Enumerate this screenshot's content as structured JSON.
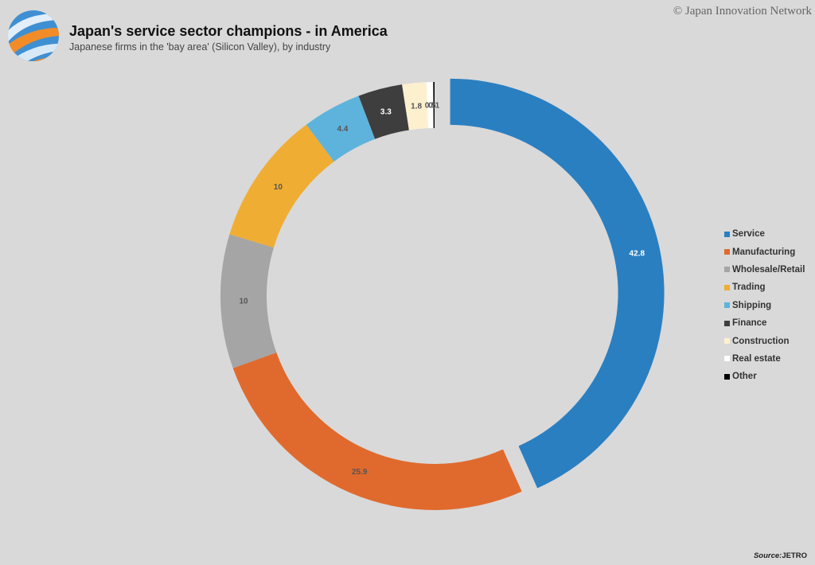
{
  "header": {
    "title": "Japan's service sector champions - in America",
    "subtitle": "Japanese firms in the 'bay area' (Silicon Valley), by industry",
    "copyright": "© Japan Innovation Network"
  },
  "footer": {
    "source_label": "Source:",
    "source_value": "JETRO"
  },
  "chart_data": {
    "type": "pie",
    "variant": "donut",
    "title": "Japan's service sector champions - in America",
    "subtitle": "Japanese firms in the 'bay area' (Silicon Valley), by industry",
    "legend_position": "right",
    "exploded_slice": "Service",
    "slices": [
      {
        "name": "Service",
        "value": 42.8,
        "label": "42.8",
        "color": "#2a7fc1",
        "label_color": "#ffffff"
      },
      {
        "name": "Manufacturing",
        "value": 25.9,
        "label": "25.9",
        "color": "#e06a2d",
        "label_color": "#555555"
      },
      {
        "name": "Wholesale/Retail",
        "value": 10,
        "label": "10",
        "color": "#a5a5a5",
        "label_color": "#555555"
      },
      {
        "name": "Trading",
        "value": 10,
        "label": "10",
        "color": "#f0ad33",
        "label_color": "#555555"
      },
      {
        "name": "Shipping",
        "value": 4.4,
        "label": "4.4",
        "color": "#5eb3dc",
        "label_color": "#555555"
      },
      {
        "name": "Finance",
        "value": 3.3,
        "label": "3.3",
        "color": "#3e3e3e",
        "label_color": "#ffffff"
      },
      {
        "name": "Construction",
        "value": 1.8,
        "label": "1.8",
        "color": "#fdf0cf",
        "label_color": "#555555"
      },
      {
        "name": "Real estate",
        "value": 0.5,
        "label": "0.5",
        "color": "#ffffff",
        "label_color": "#555555"
      },
      {
        "name": "Other",
        "value": 0.1,
        "label": "0.1",
        "color": "#000000",
        "label_color": "#555555"
      }
    ]
  }
}
